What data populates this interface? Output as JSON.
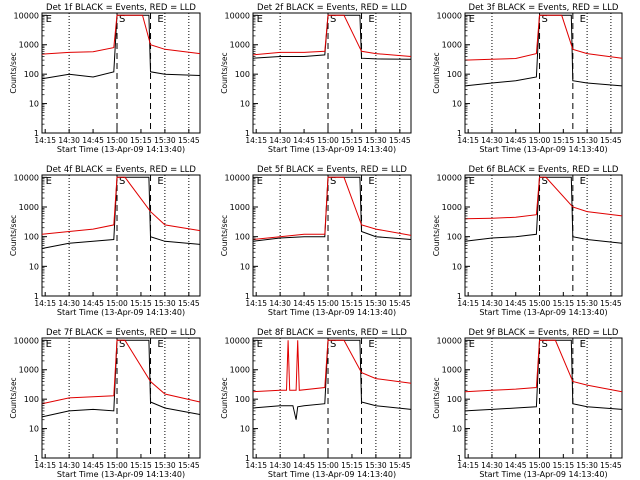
{
  "colors": {
    "events": "#000000",
    "lld": "#e00000",
    "axis": "#000000"
  },
  "shared": {
    "ylabel": "Counts/sec",
    "xlabel": "Start Time (13-Apr-09 14:13:40)",
    "x_tick_labels": [
      "14:15",
      "14:30",
      "14:45",
      "15:00",
      "15:15",
      "15:30",
      "15:45"
    ],
    "y_tick_labels": [
      "1",
      "10",
      "100",
      "1000",
      "10000"
    ],
    "marker_labels": [
      "E",
      "S",
      "E"
    ]
  },
  "chart_data": [
    {
      "type": "line",
      "title": "Det 1f BLACK = Events, RED = LLD",
      "xlabel": "Start Time (13-Apr-09 14:13:40)",
      "ylabel": "Counts/sec",
      "xlim": [
        "14:13",
        "15:52"
      ],
      "ylim": [
        1,
        12000
      ],
      "yscale": "log",
      "markers": {
        "dotted": [
          "14:30",
          "15:30",
          "15:45"
        ],
        "dashed": [
          "15:00",
          "15:21"
        ],
        "labels_at": [
          "14:14",
          "15:00",
          "15:24"
        ]
      },
      "series": [
        {
          "name": "Events",
          "color": "#000000",
          "points": [
            [
              "14:13",
              70
            ],
            [
              "14:30",
              100
            ],
            [
              "14:45",
              80
            ],
            [
              "14:58",
              120
            ],
            [
              "15:00",
              10000
            ],
            [
              "15:20",
              10000
            ],
            [
              "15:21",
              120
            ],
            [
              "15:30",
              100
            ],
            [
              "15:52",
              90
            ]
          ]
        },
        {
          "name": "LLD",
          "color": "#e00000",
          "points": [
            [
              "14:13",
              480
            ],
            [
              "14:30",
              550
            ],
            [
              "14:45",
              580
            ],
            [
              "14:58",
              800
            ],
            [
              "15:00",
              10000
            ],
            [
              "15:16",
              10000
            ],
            [
              "15:21",
              1000
            ],
            [
              "15:30",
              700
            ],
            [
              "15:52",
              500
            ]
          ]
        }
      ]
    },
    {
      "type": "line",
      "title": "Det 2f BLACK = Events, RED = LLD",
      "xlabel": "Start Time (13-Apr-09 14:13:40)",
      "ylabel": "Counts/sec",
      "xlim": [
        "14:13",
        "15:52"
      ],
      "ylim": [
        1,
        12000
      ],
      "yscale": "log",
      "markers": {
        "dotted": [
          "14:30",
          "15:30",
          "15:45"
        ],
        "dashed": [
          "15:00",
          "15:21"
        ],
        "labels_at": [
          "14:14",
          "15:00",
          "15:24"
        ]
      },
      "series": [
        {
          "name": "Events",
          "color": "#000000",
          "points": [
            [
              "14:13",
              350
            ],
            [
              "14:30",
              400
            ],
            [
              "14:45",
              400
            ],
            [
              "14:58",
              450
            ],
            [
              "15:00",
              10000
            ],
            [
              "15:20",
              10000
            ],
            [
              "15:21",
              350
            ],
            [
              "15:30",
              330
            ],
            [
              "15:52",
              320
            ]
          ]
        },
        {
          "name": "LLD",
          "color": "#e00000",
          "points": [
            [
              "14:13",
              450
            ],
            [
              "14:30",
              550
            ],
            [
              "14:45",
              550
            ],
            [
              "14:58",
              600
            ],
            [
              "15:00",
              10000
            ],
            [
              "15:10",
              10000
            ],
            [
              "15:21",
              600
            ],
            [
              "15:30",
              500
            ],
            [
              "15:52",
              400
            ]
          ]
        }
      ]
    },
    {
      "type": "line",
      "title": "Det 3f BLACK = Events, RED = LLD",
      "xlabel": "Start Time (13-Apr-09 14:13:40)",
      "ylabel": "Counts/sec",
      "xlim": [
        "14:13",
        "15:52"
      ],
      "ylim": [
        1,
        12000
      ],
      "yscale": "log",
      "markers": {
        "dotted": [
          "14:30",
          "15:30",
          "15:45"
        ],
        "dashed": [
          "15:00",
          "15:21"
        ],
        "labels_at": [
          "14:14",
          "15:00",
          "15:24"
        ]
      },
      "series": [
        {
          "name": "Events",
          "color": "#000000",
          "points": [
            [
              "14:13",
              40
            ],
            [
              "14:30",
              50
            ],
            [
              "14:45",
              60
            ],
            [
              "14:58",
              80
            ],
            [
              "15:00",
              10000
            ],
            [
              "15:20",
              10000
            ],
            [
              "15:21",
              60
            ],
            [
              "15:30",
              50
            ],
            [
              "15:52",
              40
            ]
          ]
        },
        {
          "name": "LLD",
          "color": "#e00000",
          "points": [
            [
              "14:13",
              300
            ],
            [
              "14:30",
              320
            ],
            [
              "14:45",
              340
            ],
            [
              "14:58",
              500
            ],
            [
              "15:00",
              10000
            ],
            [
              "15:14",
              10000
            ],
            [
              "15:21",
              700
            ],
            [
              "15:30",
              500
            ],
            [
              "15:52",
              350
            ]
          ]
        }
      ]
    },
    {
      "type": "line",
      "title": "Det 4f BLACK = Events, RED = LLD",
      "xlabel": "Start Time (13-Apr-09 14:13:40)",
      "ylabel": "Counts/sec",
      "xlim": [
        "14:13",
        "15:52"
      ],
      "ylim": [
        1,
        12000
      ],
      "yscale": "log",
      "markers": {
        "dotted": [
          "14:30",
          "15:30",
          "15:45"
        ],
        "dashed": [
          "15:00",
          "15:21"
        ],
        "labels_at": [
          "14:14",
          "15:00",
          "15:24"
        ]
      },
      "series": [
        {
          "name": "Events",
          "color": "#000000",
          "points": [
            [
              "14:13",
              40
            ],
            [
              "14:30",
              60
            ],
            [
              "14:45",
              70
            ],
            [
              "14:58",
              80
            ],
            [
              "15:00",
              10000
            ],
            [
              "15:20",
              10000
            ],
            [
              "15:21",
              100
            ],
            [
              "15:30",
              70
            ],
            [
              "15:52",
              55
            ]
          ]
        },
        {
          "name": "LLD",
          "color": "#e00000",
          "points": [
            [
              "14:13",
              120
            ],
            [
              "14:30",
              150
            ],
            [
              "14:45",
              180
            ],
            [
              "14:58",
              250
            ],
            [
              "15:00",
              10000
            ],
            [
              "15:05",
              10000
            ],
            [
              "15:21",
              700
            ],
            [
              "15:30",
              250
            ],
            [
              "15:52",
              160
            ]
          ]
        }
      ]
    },
    {
      "type": "line",
      "title": "Det 5f BLACK = Events, RED = LLD",
      "xlabel": "Start Time (13-Apr-09 14:13:40)",
      "ylabel": "Counts/sec",
      "xlim": [
        "14:13",
        "15:52"
      ],
      "ylim": [
        1,
        12000
      ],
      "yscale": "log",
      "markers": {
        "dotted": [
          "14:30",
          "15:30",
          "15:45"
        ],
        "dashed": [
          "15:00",
          "15:21"
        ],
        "labels_at": [
          "14:14",
          "15:00",
          "15:24"
        ]
      },
      "series": [
        {
          "name": "Events",
          "color": "#000000",
          "points": [
            [
              "14:13",
              70
            ],
            [
              "14:30",
              90
            ],
            [
              "14:45",
              100
            ],
            [
              "14:58",
              100
            ],
            [
              "15:00",
              10000
            ],
            [
              "15:20",
              10000
            ],
            [
              "15:21",
              150
            ],
            [
              "15:30",
              100
            ],
            [
              "15:52",
              80
            ]
          ]
        },
        {
          "name": "LLD",
          "color": "#e00000",
          "points": [
            [
              "14:13",
              80
            ],
            [
              "14:30",
              100
            ],
            [
              "14:45",
              120
            ],
            [
              "14:58",
              120
            ],
            [
              "15:00",
              10000
            ],
            [
              "15:10",
              10000
            ],
            [
              "15:21",
              250
            ],
            [
              "15:30",
              180
            ],
            [
              "15:52",
              110
            ]
          ]
        }
      ]
    },
    {
      "type": "line",
      "title": "Det 6f BLACK = Events, RED = LLD",
      "xlabel": "Start Time (13-Apr-09 14:13:40)",
      "ylabel": "Counts/sec",
      "xlim": [
        "14:13",
        "15:52"
      ],
      "ylim": [
        1,
        12000
      ],
      "yscale": "log",
      "markers": {
        "dotted": [
          "14:30",
          "15:30",
          "15:45"
        ],
        "dashed": [
          "15:00",
          "15:21"
        ],
        "labels_at": [
          "14:14",
          "15:00",
          "15:24"
        ]
      },
      "series": [
        {
          "name": "Events",
          "color": "#000000",
          "points": [
            [
              "14:13",
              70
            ],
            [
              "14:30",
              90
            ],
            [
              "14:45",
              100
            ],
            [
              "14:58",
              120
            ],
            [
              "15:00",
              10000
            ],
            [
              "15:20",
              10000
            ],
            [
              "15:21",
              100
            ],
            [
              "15:30",
              80
            ],
            [
              "15:52",
              60
            ]
          ]
        },
        {
          "name": "LLD",
          "color": "#e00000",
          "points": [
            [
              "14:13",
              400
            ],
            [
              "14:30",
              420
            ],
            [
              "14:45",
              450
            ],
            [
              "14:58",
              550
            ],
            [
              "15:00",
              10000
            ],
            [
              "15:04",
              10000
            ],
            [
              "15:21",
              1000
            ],
            [
              "15:30",
              700
            ],
            [
              "15:52",
              500
            ]
          ]
        }
      ]
    },
    {
      "type": "line",
      "title": "Det 7f BLACK = Events, RED = LLD",
      "xlabel": "Start Time (13-Apr-09 14:13:40)",
      "ylabel": "Counts/sec",
      "xlim": [
        "14:13",
        "15:52"
      ],
      "ylim": [
        1,
        12000
      ],
      "yscale": "log",
      "markers": {
        "dotted": [
          "14:30",
          "15:30",
          "15:45"
        ],
        "dashed": [
          "15:00",
          "15:21"
        ],
        "labels_at": [
          "14:14",
          "15:00",
          "15:24"
        ]
      },
      "series": [
        {
          "name": "Events",
          "color": "#000000",
          "points": [
            [
              "14:13",
              25
            ],
            [
              "14:30",
              40
            ],
            [
              "14:45",
              45
            ],
            [
              "14:58",
              40
            ],
            [
              "15:00",
              10000
            ],
            [
              "15:20",
              10000
            ],
            [
              "15:21",
              80
            ],
            [
              "15:30",
              50
            ],
            [
              "15:52",
              30
            ]
          ]
        },
        {
          "name": "LLD",
          "color": "#e00000",
          "points": [
            [
              "14:13",
              70
            ],
            [
              "14:30",
              110
            ],
            [
              "14:45",
              120
            ],
            [
              "14:58",
              130
            ],
            [
              "15:00",
              10000
            ],
            [
              "15:05",
              10000
            ],
            [
              "15:21",
              400
            ],
            [
              "15:30",
              150
            ],
            [
              "15:52",
              80
            ]
          ]
        }
      ]
    },
    {
      "type": "line",
      "title": "Det 8f BLACK = Events, RED = LLD",
      "xlabel": "Start Time (13-Apr-09 14:13:40)",
      "ylabel": "Counts/sec",
      "xlim": [
        "14:13",
        "15:52"
      ],
      "ylim": [
        1,
        12000
      ],
      "yscale": "log",
      "markers": {
        "dotted": [
          "14:30",
          "15:30",
          "15:45"
        ],
        "dashed": [
          "15:00",
          "15:21"
        ],
        "labels_at": [
          "14:14",
          "15:00",
          "15:24"
        ]
      },
      "series": [
        {
          "name": "Events",
          "color": "#000000",
          "points": [
            [
              "14:13",
              50
            ],
            [
              "14:30",
              60
            ],
            [
              "14:38",
              60
            ],
            [
              "14:40",
              20
            ],
            [
              "14:41",
              55
            ],
            [
              "14:45",
              60
            ],
            [
              "14:58",
              70
            ],
            [
              "15:00",
              10000
            ],
            [
              "15:20",
              10000
            ],
            [
              "15:21",
              80
            ],
            [
              "15:30",
              60
            ],
            [
              "15:52",
              45
            ]
          ]
        },
        {
          "name": "LLD",
          "color": "#e00000",
          "points": [
            [
              "14:13",
              180
            ],
            [
              "14:30",
              200
            ],
            [
              "14:34",
              200
            ],
            [
              "14:35",
              10000
            ],
            [
              "14:36",
              200
            ],
            [
              "14:40",
              200
            ],
            [
              "14:41",
              10000
            ],
            [
              "14:42",
              200
            ],
            [
              "14:58",
              250
            ],
            [
              "15:00",
              10000
            ],
            [
              "15:10",
              10000
            ],
            [
              "15:21",
              800
            ],
            [
              "15:30",
              500
            ],
            [
              "15:52",
              350
            ]
          ]
        }
      ]
    },
    {
      "type": "line",
      "title": "Det 9f BLACK = Events, RED = LLD",
      "xlabel": "Start Time (13-Apr-09 14:13:40)",
      "ylabel": "Counts/sec",
      "xlim": [
        "14:13",
        "15:52"
      ],
      "ylim": [
        1,
        12000
      ],
      "yscale": "log",
      "markers": {
        "dotted": [
          "14:30",
          "15:30",
          "15:45"
        ],
        "dashed": [
          "15:00",
          "15:21"
        ],
        "labels_at": [
          "14:14",
          "15:00",
          "15:24"
        ]
      },
      "series": [
        {
          "name": "Events",
          "color": "#000000",
          "points": [
            [
              "14:13",
              40
            ],
            [
              "14:30",
              45
            ],
            [
              "14:45",
              50
            ],
            [
              "14:58",
              55
            ],
            [
              "15:00",
              10000
            ],
            [
              "15:20",
              10000
            ],
            [
              "15:21",
              70
            ],
            [
              "15:30",
              55
            ],
            [
              "15:52",
              45
            ]
          ]
        },
        {
          "name": "LLD",
          "color": "#e00000",
          "points": [
            [
              "14:13",
              180
            ],
            [
              "14:30",
              200
            ],
            [
              "14:45",
              220
            ],
            [
              "14:58",
              250
            ],
            [
              "15:00",
              10000
            ],
            [
              "15:10",
              10000
            ],
            [
              "15:21",
              400
            ],
            [
              "15:30",
              300
            ],
            [
              "15:52",
              180
            ]
          ]
        }
      ]
    }
  ]
}
